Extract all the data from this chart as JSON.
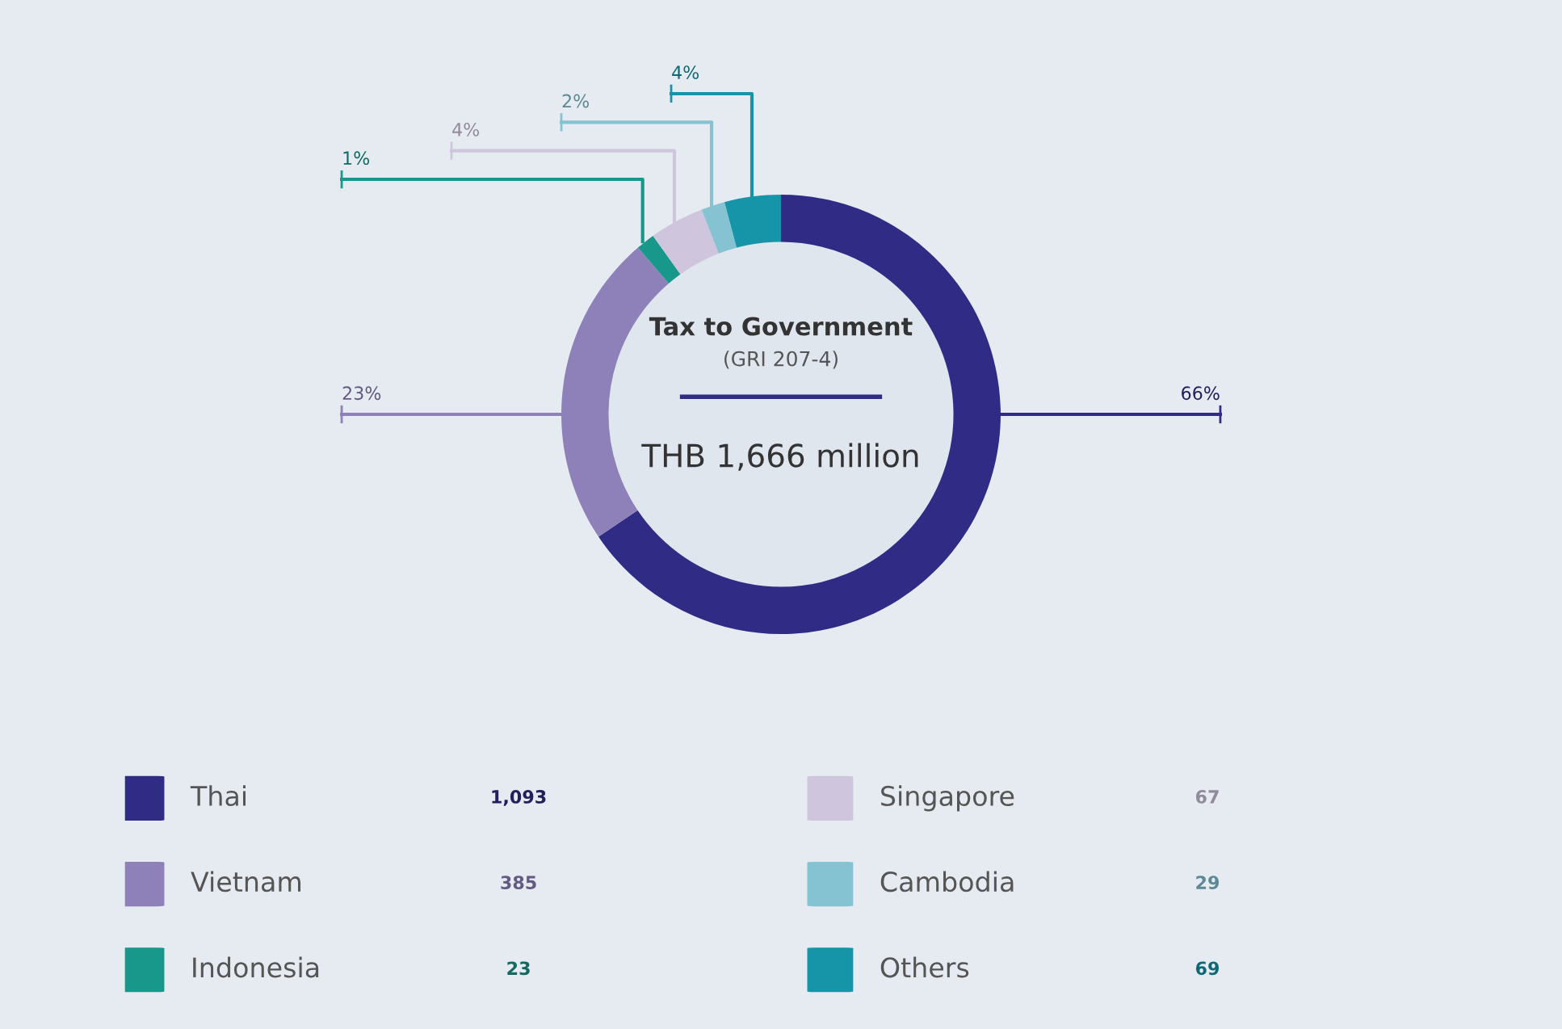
{
  "chart_data": {
    "type": "donut",
    "title": "Tax to Government",
    "subtitle": "(GRI 207-4)",
    "categories": [
      "Thai",
      "Vietnam",
      "Indonesia",
      "Singapore",
      "Cambodia",
      "Others"
    ],
    "values": [
      1093,
      385,
      23,
      67,
      29,
      69
    ],
    "value_labels": [
      "1,093",
      "385",
      "23",
      "67",
      "29",
      "69"
    ],
    "colors": [
      "#302c85",
      "#8e80b8",
      "#17988a",
      "#cfc5dc",
      "#86c3d2",
      "#1695a8"
    ],
    "annotations": [
      "66%",
      "23%",
      "1%",
      "4%",
      "2%",
      "4%",
      "THB 1,666 million"
    ],
    "legend": "bottom"
  }
}
